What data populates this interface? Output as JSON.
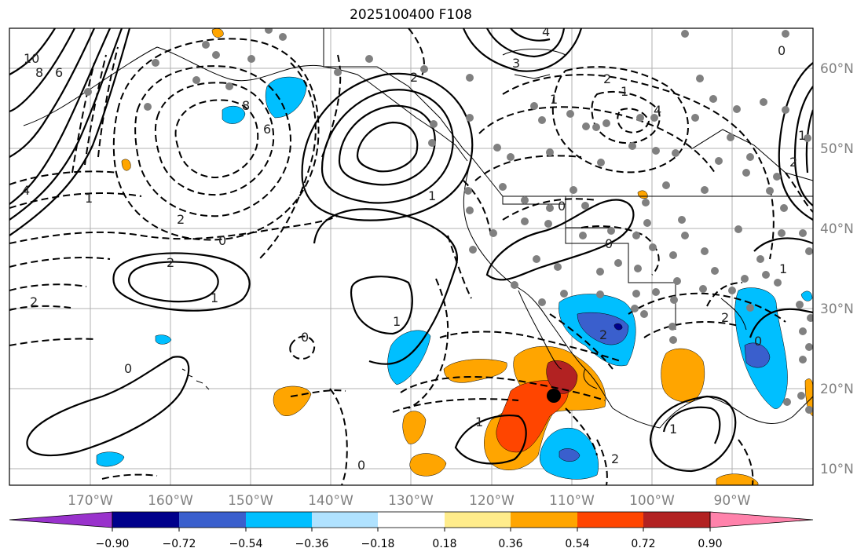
{
  "title": "2025100400 F108",
  "map": {
    "latitude_labels": [
      "60°N",
      "50°N",
      "40°N",
      "30°N",
      "20°N",
      "10°N"
    ],
    "longitude_labels": [
      "170°W",
      "160°W",
      "150°W",
      "140°W",
      "130°W",
      "120°W",
      "110°W",
      "100°W",
      "90°W"
    ],
    "contour_labels": [
      "10",
      "8",
      "6",
      "6",
      "8",
      "4",
      "2",
      "1",
      "2",
      "0",
      "2",
      "1",
      "2",
      "1",
      "0",
      "0",
      "1",
      "4",
      "3",
      "2",
      "1",
      "4",
      "2",
      "0",
      "2",
      "0",
      "1",
      "2",
      "1",
      "0",
      "1",
      "0",
      "1",
      "0",
      "1",
      "2"
    ],
    "marker": "storm-center"
  },
  "colorbar": {
    "tick_labels": [
      "−0.90",
      "−0.72",
      "−0.54",
      "−0.36",
      "−0.18",
      "0.18",
      "0.36",
      "0.54",
      "0.72",
      "0.90"
    ],
    "colors": [
      "#9932cc",
      "#00008b",
      "#3a5fcd",
      "#00bfff",
      "#b0e2ff",
      "#ffffff",
      "#ffec8b",
      "#ffa500",
      "#ff4500",
      "#b22222",
      "#ff82ab"
    ]
  }
}
